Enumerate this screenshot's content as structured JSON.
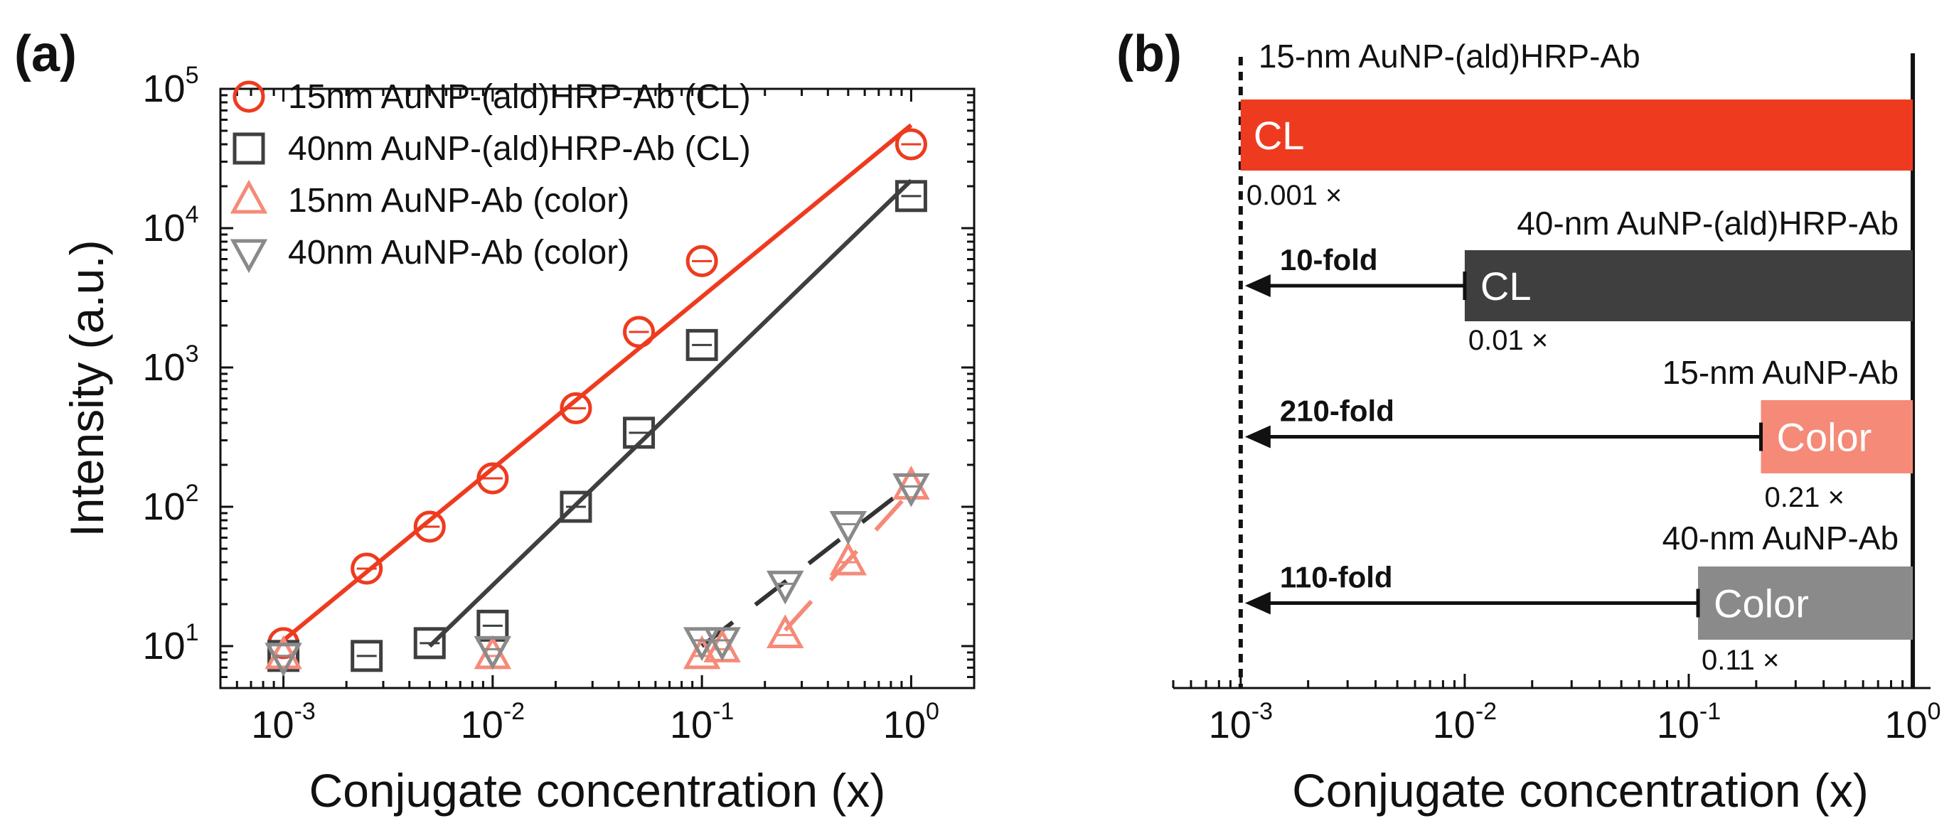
{
  "chart_data": [
    {
      "panel": "(a)",
      "type": "scatter",
      "xlabel": "Conjugate concentration (x)",
      "ylabel": "Intensity (a.u.)",
      "xscale": "log",
      "yscale": "log",
      "xlim": [
        0.0005,
        2
      ],
      "ylim": [
        5,
        100000
      ],
      "xticks": [
        {
          "base": "10",
          "exp": "-3",
          "value": 0.001
        },
        {
          "base": "10",
          "exp": "-2",
          "value": 0.01
        },
        {
          "base": "10",
          "exp": "-1",
          "value": 0.1
        },
        {
          "base": "10",
          "exp": "0",
          "value": 1
        }
      ],
      "yticks": [
        {
          "base": "10",
          "exp": "1",
          "value": 10
        },
        {
          "base": "10",
          "exp": "2",
          "value": 100
        },
        {
          "base": "10",
          "exp": "3",
          "value": 1000
        },
        {
          "base": "10",
          "exp": "4",
          "value": 10000
        },
        {
          "base": "10",
          "exp": "5",
          "value": 100000
        }
      ],
      "legend_position": "top-left",
      "series": [
        {
          "name": "15nm AuNP-(ald)HRP-Ab (CL)",
          "marker": "circle",
          "color": "#ee3b1f",
          "x": [
            0.001,
            0.0025,
            0.005,
            0.01,
            0.025,
            0.05,
            0.1,
            1
          ],
          "y": [
            10.5,
            36,
            72,
            160,
            510,
            1800,
            5800,
            40000
          ],
          "fit": {
            "x": [
              0.001,
              1
            ],
            "y": [
              11,
              55000
            ],
            "style": "solid"
          }
        },
        {
          "name": "40nm AuNP-(ald)HRP-Ab (CL)",
          "marker": "square",
          "color": "#3f3f3f",
          "x": [
            0.001,
            0.0025,
            0.005,
            0.01,
            0.025,
            0.05,
            0.1,
            1
          ],
          "y": [
            8.5,
            8.5,
            10.5,
            14,
            100,
            340,
            1450,
            17000
          ],
          "fit": {
            "x": [
              0.005,
              1
            ],
            "y": [
              10,
              22000
            ],
            "style": "solid"
          }
        },
        {
          "name": "15nm AuNP-Ab (color)",
          "marker": "triangle-up",
          "color": "#f58a78",
          "x": [
            0.001,
            0.01,
            0.1,
            0.125,
            0.25,
            0.5,
            1
          ],
          "y": [
            8.5,
            8.5,
            8.5,
            9.5,
            12,
            40,
            140
          ],
          "fit": {
            "x": [
              0.25,
              1
            ],
            "y": [
              13,
              130
            ],
            "style": "dashed"
          }
        },
        {
          "name": "40nm AuNP-Ab (color)",
          "marker": "triangle-down",
          "color": "#8a8a8a",
          "x": [
            0.001,
            0.01,
            0.1,
            0.125,
            0.25,
            0.5,
            1
          ],
          "y": [
            8.5,
            9.5,
            11,
            11,
            28,
            75,
            140
          ],
          "fit": {
            "x": [
              0.1,
              1
            ],
            "y": [
              10,
              145
            ],
            "style": "dashed"
          }
        }
      ]
    },
    {
      "panel": "(b)",
      "type": "bar",
      "orientation": "horizontal",
      "xlabel": "Conjugate concentration (x)",
      "xscale": "log",
      "xlim": [
        0.0005,
        1.2
      ],
      "xticks": [
        {
          "base": "10",
          "exp": "-3",
          "value": 0.001
        },
        {
          "base": "10",
          "exp": "-2",
          "value": 0.01
        },
        {
          "base": "10",
          "exp": "-1",
          "value": 0.1
        },
        {
          "base": "10",
          "exp": "0",
          "value": 1
        }
      ],
      "reference_line": 0.001,
      "bars": [
        {
          "title": "15-nm AuNP-(ald)HRP-Ab",
          "label": "CL",
          "value": 0.001,
          "fraction_label": "0.001 ×",
          "fold": "",
          "color": "#ee3b1f"
        },
        {
          "title": "40-nm AuNP-(ald)HRP-Ab",
          "label": "CL",
          "value": 0.01,
          "fraction_label": "0.01 ×",
          "fold": "10-fold",
          "color": "#3f3f3f"
        },
        {
          "title": "15-nm AuNP-Ab",
          "label": "Color",
          "value": 0.21,
          "fraction_label": "0.21 ×",
          "fold": "210-fold",
          "color": "#f58a78"
        },
        {
          "title": "40-nm AuNP-Ab",
          "label": "Color",
          "value": 0.11,
          "fraction_label": "0.11 ×",
          "fold": "110-fold",
          "color": "#8a8a8a"
        }
      ]
    }
  ]
}
